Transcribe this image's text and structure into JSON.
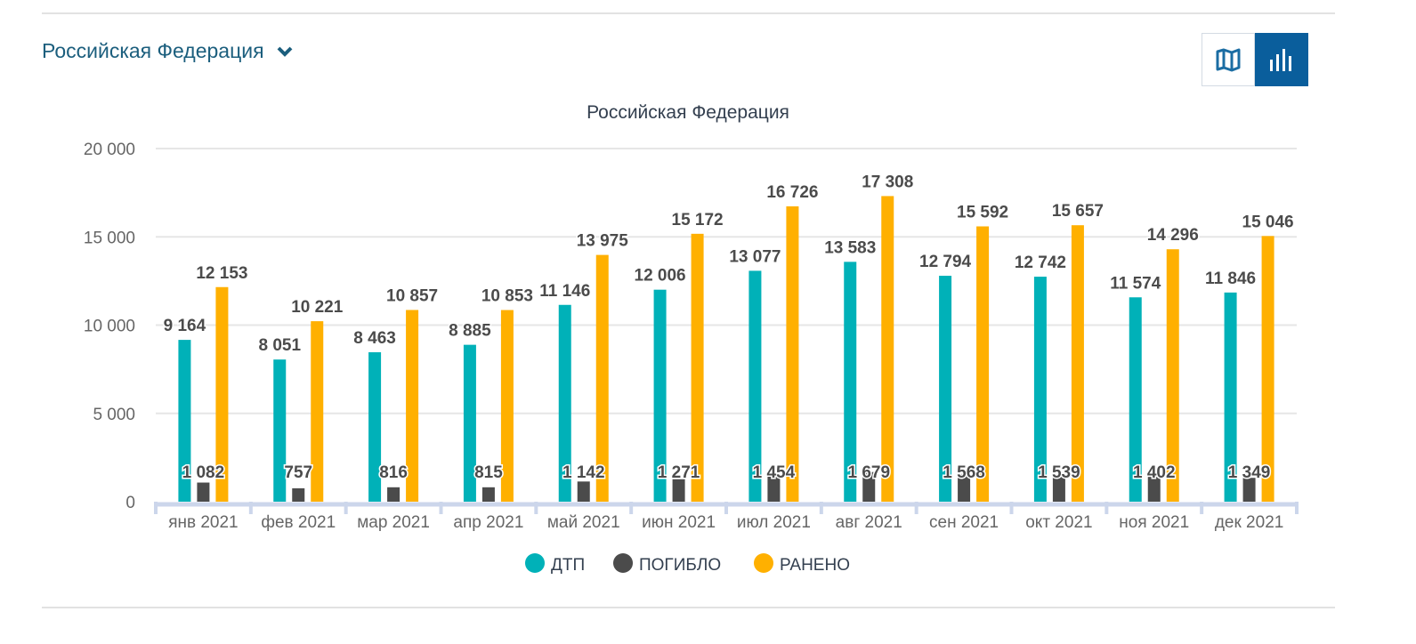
{
  "header": {
    "region_label": "Российская Федерация"
  },
  "view_toggle": {
    "map_icon": "map-icon",
    "chart_icon": "bar-chart-icon",
    "active": "chart"
  },
  "colors": {
    "dtp": "#00b1b8",
    "killed": "#4b4b4b",
    "injured": "#ffb000",
    "accent": "#0a5e9c"
  },
  "chart_data": {
    "type": "bar",
    "title": "Российская Федерация",
    "xlabel": "",
    "ylabel": "",
    "ylim": [
      0,
      20000
    ],
    "yticks": [
      0,
      5000,
      10000,
      15000,
      20000
    ],
    "ytick_labels": [
      "0",
      "5 000",
      "10 000",
      "15 000",
      "20 000"
    ],
    "categories": [
      "янв 2021",
      "фев 2021",
      "мар 2021",
      "апр 2021",
      "май 2021",
      "июн 2021",
      "июл 2021",
      "авг 2021",
      "сен 2021",
      "окт 2021",
      "ноя 2021",
      "дек 2021"
    ],
    "series": [
      {
        "name": "ДТП",
        "values": [
          9164,
          8051,
          8463,
          8885,
          11146,
          12006,
          13077,
          13583,
          12794,
          12742,
          11574,
          11846
        ]
      },
      {
        "name": "ПОГИБЛО",
        "values": [
          1082,
          757,
          816,
          815,
          1142,
          1271,
          1454,
          1679,
          1568,
          1539,
          1402,
          1349
        ]
      },
      {
        "name": "РАНЕНО",
        "values": [
          12153,
          10221,
          10857,
          10853,
          13975,
          15172,
          16726,
          17308,
          15592,
          15657,
          14296,
          15046
        ]
      }
    ],
    "grid": true,
    "legend_position": "bottom-center"
  }
}
